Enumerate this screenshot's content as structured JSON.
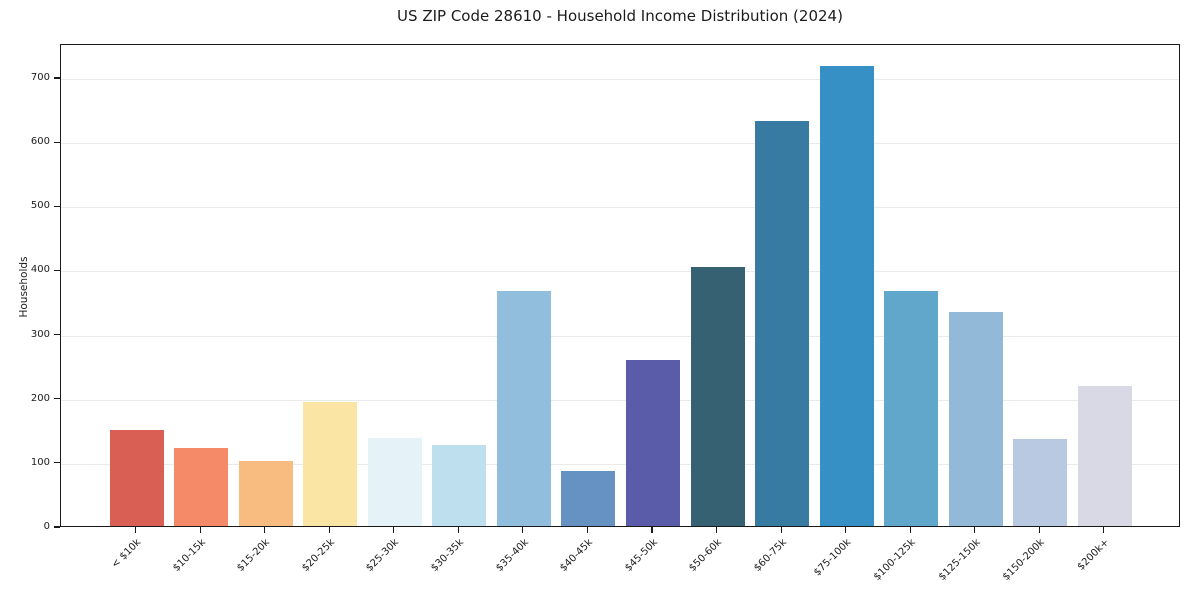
{
  "chart_data": {
    "type": "bar",
    "title": "US ZIP Code 28610 - Household Income Distribution (2024)",
    "ylabel": "Households",
    "xlabel": "",
    "categories": [
      "< $10k",
      "$10-15k",
      "$15-20k",
      "$20-25k",
      "$25-30k",
      "$30-35k",
      "$35-40k",
      "$40-45k",
      "$45-50k",
      "$50-60k",
      "$60-75k",
      "$75-100k",
      "$100-125k",
      "$125-150k",
      "$150-200k",
      "$200k+"
    ],
    "values": [
      150,
      122,
      102,
      193,
      137,
      126,
      367,
      86,
      259,
      404,
      632,
      717,
      367,
      334,
      136,
      219
    ],
    "bar_colors": [
      "#d95f55",
      "#f48a68",
      "#f9bc80",
      "#fbe5a4",
      "#e5f2f8",
      "#bedfed",
      "#92bedd",
      "#6591c3",
      "#5a5caa",
      "#356173",
      "#377ba3",
      "#368fc5",
      "#61a7cb",
      "#93b9d9",
      "#b9c9e1",
      "#d8d9e5"
    ],
    "ylim": [
      0,
      753
    ],
    "yticks": [
      0,
      100,
      200,
      300,
      400,
      500,
      600,
      700
    ],
    "grid": true,
    "legend": "none",
    "background_color": "#ffffff",
    "axis_color": "#1a1a1a",
    "grid_color": "#eaeaea",
    "text_color": "#1c1c1c"
  }
}
